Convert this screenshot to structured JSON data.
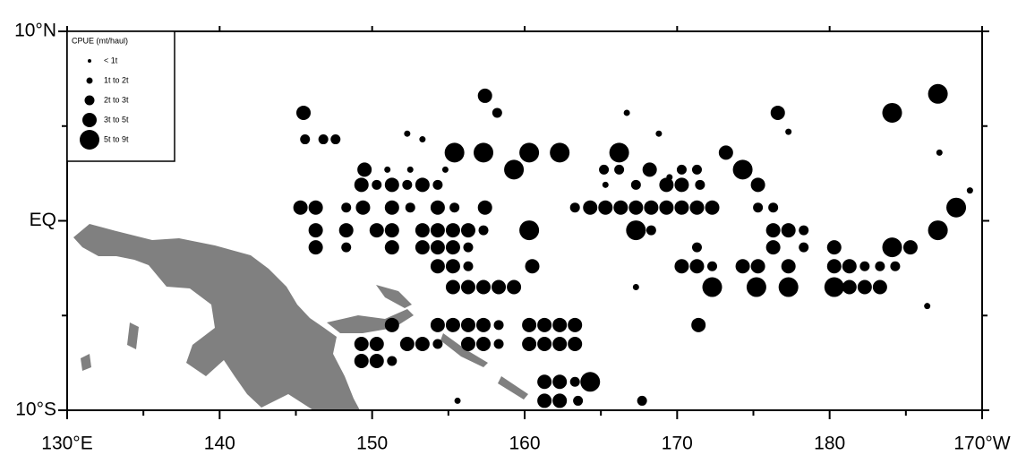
{
  "chart_data": {
    "type": "bubble_map",
    "legend_title": "CPUE (mt/haul)",
    "classes": [
      "< 1t",
      "1t to 2t",
      "2t to 3t",
      "3t to 5t",
      "5t to 9t"
    ],
    "color": "#000000",
    "land_color": "#808080",
    "xlim": [
      130,
      190
    ],
    "ylim": [
      -10,
      10
    ],
    "xticks": [
      {
        "value": 130,
        "label": "130°E"
      },
      140,
      150,
      160,
      170,
      180,
      {
        "value": 190,
        "label": "170°W"
      }
    ],
    "xminor_ticks": [
      135,
      145,
      155,
      165,
      175,
      185
    ],
    "yticks": [
      {
        "value": 10,
        "label": "10°N"
      },
      {
        "value": 0,
        "label": "EQ"
      },
      {
        "value": -10,
        "label": "10°S"
      }
    ],
    "yminor_ticks": [
      5,
      -5
    ],
    "points": [
      [
        145.5,
        5.7,
        3
      ],
      [
        145.6,
        4.3,
        2
      ],
      [
        146.8,
        4.3,
        2
      ],
      [
        147.6,
        4.3,
        2
      ],
      [
        149.5,
        2.7,
        3
      ],
      [
        151,
        2.7,
        1
      ],
      [
        152.5,
        2.7,
        1
      ],
      [
        154.8,
        2.7,
        1
      ],
      [
        159.3,
        2.7,
        4
      ],
      [
        165.2,
        2.7,
        2
      ],
      [
        166.2,
        2.7,
        2
      ],
      [
        168.2,
        2.7,
        3
      ],
      [
        170.3,
        2.7,
        2
      ],
      [
        171.3,
        2.7,
        2
      ],
      [
        174.3,
        2.7,
        4
      ],
      [
        149.3,
        1.9,
        3
      ],
      [
        150.3,
        1.9,
        2
      ],
      [
        151.3,
        1.9,
        3
      ],
      [
        152.3,
        1.9,
        2
      ],
      [
        153.3,
        1.9,
        3
      ],
      [
        154.3,
        1.9,
        2
      ],
      [
        165.3,
        1.9,
        1
      ],
      [
        167.3,
        1.9,
        2
      ],
      [
        169.3,
        1.9,
        3
      ],
      [
        170.3,
        1.9,
        3
      ],
      [
        171.5,
        1.9,
        2
      ],
      [
        175.3,
        1.9,
        3
      ],
      [
        145.3,
        0.7,
        3
      ],
      [
        146.3,
        0.7,
        3
      ],
      [
        148.3,
        0.7,
        2
      ],
      [
        149.4,
        0.7,
        3
      ],
      [
        151.3,
        0.7,
        3
      ],
      [
        152.5,
        0.7,
        2
      ],
      [
        154.3,
        0.7,
        3
      ],
      [
        155.4,
        0.7,
        2
      ],
      [
        157.4,
        0.7,
        3
      ],
      [
        163.3,
        0.7,
        2
      ],
      [
        164.3,
        0.7,
        3
      ],
      [
        165.3,
        0.7,
        3
      ],
      [
        166.3,
        0.7,
        3
      ],
      [
        167.3,
        0.7,
        3
      ],
      [
        168.3,
        0.7,
        3
      ],
      [
        169.3,
        0.7,
        3
      ],
      [
        170.3,
        0.7,
        3
      ],
      [
        171.3,
        0.7,
        3
      ],
      [
        172.3,
        0.7,
        3
      ],
      [
        175.3,
        0.7,
        2
      ],
      [
        176.3,
        0.7,
        2
      ],
      [
        188.3,
        0.7,
        4
      ],
      [
        146.3,
        -0.5,
        3
      ],
      [
        148.3,
        -0.5,
        3
      ],
      [
        150.3,
        -0.5,
        3
      ],
      [
        151.3,
        -0.5,
        3
      ],
      [
        153.3,
        -0.5,
        3
      ],
      [
        154.3,
        -0.5,
        3
      ],
      [
        155.3,
        -0.5,
        3
      ],
      [
        156.3,
        -0.5,
        3
      ],
      [
        157.3,
        -0.5,
        2
      ],
      [
        160.3,
        -0.5,
        4
      ],
      [
        167.3,
        -0.5,
        4
      ],
      [
        168.3,
        -0.5,
        2
      ],
      [
        176.3,
        -0.5,
        3
      ],
      [
        177.3,
        -0.5,
        3
      ],
      [
        178.3,
        -0.5,
        2
      ],
      [
        187.1,
        -0.5,
        4
      ],
      [
        146.3,
        -1.4,
        3
      ],
      [
        148.3,
        -1.4,
        2
      ],
      [
        151.3,
        -1.4,
        3
      ],
      [
        153.3,
        -1.4,
        3
      ],
      [
        154.3,
        -1.4,
        3
      ],
      [
        155.3,
        -1.4,
        3
      ],
      [
        156.3,
        -1.4,
        2
      ],
      [
        171.3,
        -1.4,
        2
      ],
      [
        176.3,
        -1.4,
        3
      ],
      [
        178.3,
        -1.4,
        2
      ],
      [
        180.3,
        -1.4,
        3
      ],
      [
        184.1,
        -1.4,
        4
      ],
      [
        185.3,
        -1.4,
        3
      ],
      [
        154.3,
        -2.4,
        3
      ],
      [
        155.3,
        -2.4,
        3
      ],
      [
        156.3,
        -2.4,
        2
      ],
      [
        160.5,
        -2.4,
        3
      ],
      [
        170.3,
        -2.4,
        3
      ],
      [
        171.3,
        -2.4,
        3
      ],
      [
        172.3,
        -2.4,
        2
      ],
      [
        174.3,
        -2.4,
        3
      ],
      [
        175.3,
        -2.4,
        3
      ],
      [
        177.3,
        -2.4,
        3
      ],
      [
        180.3,
        -2.4,
        3
      ],
      [
        181.3,
        -2.4,
        3
      ],
      [
        182.3,
        -2.4,
        2
      ],
      [
        183.3,
        -2.4,
        2
      ],
      [
        184.3,
        -2.4,
        2
      ],
      [
        155.3,
        -3.5,
        3
      ],
      [
        156.3,
        -3.5,
        3
      ],
      [
        157.3,
        -3.5,
        3
      ],
      [
        158.3,
        -3.5,
        3
      ],
      [
        159.3,
        -3.5,
        3
      ],
      [
        167.3,
        -3.5,
        1
      ],
      [
        172.3,
        -3.5,
        4
      ],
      [
        175.2,
        -3.5,
        4
      ],
      [
        177.3,
        -3.5,
        4
      ],
      [
        180.3,
        -3.5,
        4
      ],
      [
        181.3,
        -3.5,
        3
      ],
      [
        182.3,
        -3.5,
        3
      ],
      [
        183.3,
        -3.5,
        3
      ],
      [
        151.3,
        -5.5,
        3
      ],
      [
        154.3,
        -5.5,
        3
      ],
      [
        155.3,
        -5.5,
        3
      ],
      [
        156.3,
        -5.5,
        3
      ],
      [
        157.3,
        -5.5,
        3
      ],
      [
        158.3,
        -5.5,
        2
      ],
      [
        160.3,
        -5.5,
        3
      ],
      [
        161.3,
        -5.5,
        3
      ],
      [
        162.3,
        -5.5,
        3
      ],
      [
        163.3,
        -5.5,
        3
      ],
      [
        171.4,
        -5.5,
        3
      ],
      [
        149.3,
        -6.5,
        3
      ],
      [
        150.3,
        -6.5,
        3
      ],
      [
        152.3,
        -6.5,
        3
      ],
      [
        153.3,
        -6.5,
        3
      ],
      [
        154.3,
        -6.5,
        2
      ],
      [
        156.3,
        -6.5,
        3
      ],
      [
        157.3,
        -6.5,
        3
      ],
      [
        158.3,
        -6.5,
        2
      ],
      [
        160.3,
        -6.5,
        3
      ],
      [
        161.3,
        -6.5,
        3
      ],
      [
        162.3,
        -6.5,
        3
      ],
      [
        163.3,
        -6.5,
        3
      ],
      [
        149.3,
        -7.4,
        3
      ],
      [
        150.3,
        -7.4,
        3
      ],
      [
        151.3,
        -7.4,
        2
      ],
      [
        161.3,
        -8.5,
        3
      ],
      [
        162.3,
        -8.5,
        3
      ],
      [
        163.3,
        -8.5,
        2
      ],
      [
        164.3,
        -8.5,
        4
      ],
      [
        161.3,
        -9.5,
        3
      ],
      [
        162.3,
        -9.5,
        3
      ],
      [
        163.5,
        -9.5,
        2
      ],
      [
        167.7,
        -9.5,
        2
      ],
      [
        155.6,
        -9.5,
        1
      ],
      [
        157.4,
        6.6,
        3
      ],
      [
        158.2,
        5.7,
        2
      ],
      [
        166.7,
        5.7,
        1
      ],
      [
        176.6,
        5.7,
        3
      ],
      [
        177.3,
        4.7,
        1
      ],
      [
        187.1,
        6.7,
        4
      ],
      [
        184.1,
        5.7,
        4
      ],
      [
        155.4,
        3.6,
        4
      ],
      [
        157.3,
        3.6,
        4
      ],
      [
        160.3,
        3.6,
        4
      ],
      [
        162.3,
        3.6,
        4
      ],
      [
        166.2,
        3.6,
        4
      ],
      [
        173.2,
        3.6,
        3
      ],
      [
        152.3,
        4.6,
        1
      ],
      [
        153.3,
        4.3,
        1
      ],
      [
        187.2,
        3.6,
        1
      ],
      [
        189.2,
        1.6,
        1
      ],
      [
        186.4,
        -4.5,
        1
      ],
      [
        168.8,
        4.6,
        1
      ],
      [
        169.5,
        2.3,
        1
      ]
    ]
  }
}
